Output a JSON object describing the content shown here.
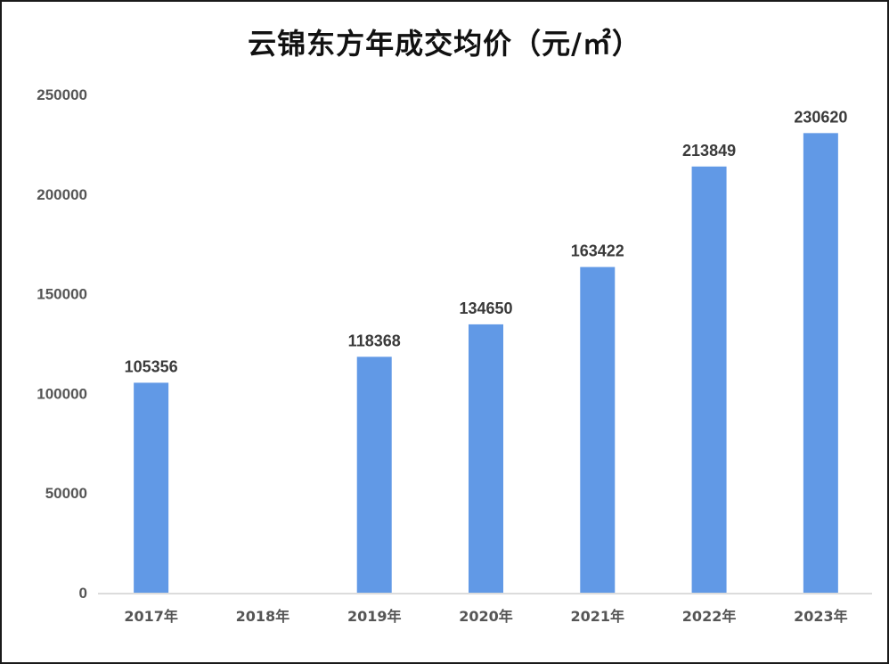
{
  "chart_data": {
    "type": "bar",
    "title": "云锦东方年成交均价（元/㎡）",
    "categories": [
      "2017年",
      "2018年",
      "2019年",
      "2020年",
      "2021年",
      "2022年",
      "2023年"
    ],
    "series": [
      {
        "values": [
          105356,
          null,
          118368,
          134650,
          163422,
          213849,
          230620
        ]
      }
    ],
    "data_labels": [
      "105356",
      "",
      "118368",
      "134650",
      "163422",
      "213849",
      "230620"
    ],
    "y_ticks": [
      0,
      50000,
      100000,
      150000,
      200000,
      250000
    ],
    "ylim": [
      0,
      250000
    ],
    "grid": false,
    "legend": "none",
    "colors": {
      "bar": "#6199e6",
      "axis": "#d0d0d0",
      "text": "#555555"
    }
  }
}
